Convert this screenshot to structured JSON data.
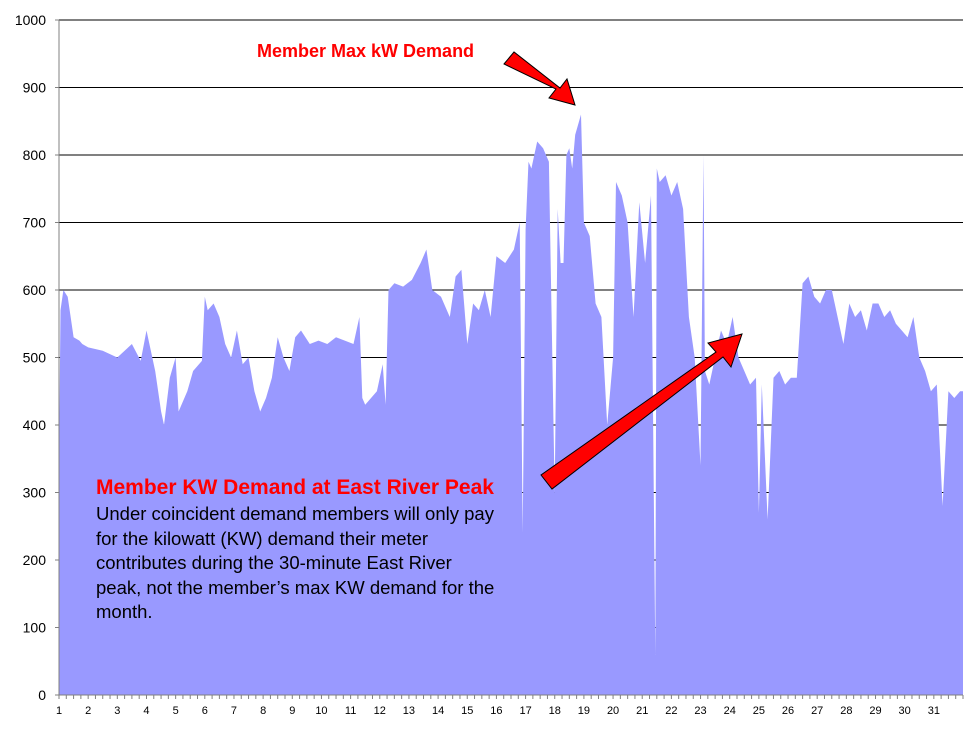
{
  "chart_data": {
    "type": "area",
    "title": "",
    "xlabel": "",
    "ylabel": "",
    "ylim": [
      0,
      1000
    ],
    "yticks": [
      0,
      100,
      200,
      300,
      400,
      500,
      600,
      700,
      800,
      900,
      1000
    ],
    "xlim": [
      1,
      32
    ],
    "xticks": [
      "1",
      "2",
      "3",
      "4",
      "5",
      "6",
      "7",
      "8",
      "9",
      "10",
      "11",
      "12",
      "13",
      "14",
      "15",
      "16",
      "17",
      "18",
      "19",
      "20",
      "21",
      "22",
      "23",
      "24",
      "25",
      "26",
      "27",
      "28",
      "29",
      "30",
      "31"
    ],
    "grid": true,
    "legend": "none",
    "fill_color": "#9999ff",
    "series": [
      {
        "day": [
          1.0,
          1.05,
          1.15,
          1.3,
          1.5,
          1.7,
          1.8,
          2.0,
          2.5,
          3.0,
          3.5,
          3.8,
          4.0,
          4.3,
          4.5,
          4.6,
          4.8,
          5.0,
          5.1,
          5.4,
          5.6,
          5.9,
          6.0,
          6.1,
          6.3,
          6.5,
          6.7,
          6.9,
          7.1,
          7.3,
          7.5,
          7.7,
          7.9,
          8.1,
          8.3,
          8.5,
          8.7,
          8.9,
          9.1,
          9.3,
          9.6,
          9.9,
          10.2,
          10.5,
          10.8,
          11.1,
          11.3,
          11.4,
          11.5,
          11.9,
          12.1,
          12.2,
          12.3,
          12.5,
          12.8,
          13.1,
          13.4,
          13.6,
          13.8,
          14.1,
          14.4,
          14.6,
          14.8,
          15.0,
          15.2,
          15.4,
          15.6,
          15.8,
          16.0,
          16.3,
          16.6,
          16.8,
          16.9,
          17.0,
          17.1,
          17.2,
          17.4,
          17.6,
          17.8,
          18.0,
          18.1,
          18.2,
          18.3,
          18.4,
          18.5,
          18.6,
          18.7,
          18.9,
          19.0,
          19.2,
          19.4,
          19.6,
          19.8,
          20.0,
          20.1,
          20.3,
          20.5,
          20.7,
          20.9,
          21.1,
          21.3,
          21.45,
          21.5,
          21.6,
          21.8,
          22.0,
          22.2,
          22.4,
          22.6,
          22.8,
          23.0,
          23.1,
          23.15,
          23.3,
          23.5,
          23.7,
          23.9,
          24.1,
          24.3,
          24.5,
          24.7,
          24.9,
          25.0,
          25.1,
          25.3,
          25.5,
          25.7,
          25.9,
          26.1,
          26.3,
          26.5,
          26.7,
          26.9,
          27.1,
          27.3,
          27.5,
          27.7,
          27.9,
          28.1,
          28.3,
          28.5,
          28.7,
          28.9,
          29.1,
          29.3,
          29.5,
          29.7,
          29.9,
          30.1,
          30.3,
          30.5,
          30.7,
          30.9,
          31.1,
          31.3,
          31.5,
          31.7,
          31.9,
          32.0
        ],
        "kw": [
          340,
          570,
          600,
          590,
          530,
          525,
          520,
          515,
          510,
          500,
          520,
          495,
          540,
          480,
          420,
          400,
          470,
          500,
          420,
          450,
          480,
          495,
          590,
          570,
          580,
          560,
          520,
          500,
          540,
          490,
          500,
          450,
          420,
          440,
          470,
          530,
          500,
          480,
          530,
          540,
          520,
          525,
          520,
          530,
          525,
          520,
          560,
          440,
          430,
          450,
          490,
          430,
          600,
          610,
          605,
          615,
          640,
          660,
          600,
          590,
          560,
          620,
          630,
          520,
          580,
          570,
          600,
          560,
          650,
          640,
          660,
          700,
          240,
          690,
          790,
          780,
          820,
          810,
          790,
          300,
          720,
          640,
          640,
          800,
          810,
          780,
          830,
          860,
          700,
          680,
          580,
          560,
          400,
          500,
          760,
          740,
          700,
          560,
          730,
          640,
          740,
          60,
          780,
          760,
          770,
          740,
          760,
          720,
          560,
          500,
          340,
          800,
          480,
          460,
          500,
          540,
          520,
          560,
          500,
          480,
          460,
          470,
          270,
          460,
          260,
          470,
          480,
          460,
          470,
          470,
          610,
          620,
          590,
          580,
          600,
          600,
          560,
          520,
          580,
          560,
          570,
          540,
          580,
          580,
          560,
          570,
          550,
          540,
          530,
          560,
          500,
          480,
          450,
          460,
          280,
          450,
          440,
          450,
          450,
          455
        ]
      }
    ],
    "annotations": [
      "Member Max kW Demand",
      "Member KW Demand at East River Peak"
    ]
  },
  "note": {
    "title": "Member KW Demand at East River Peak",
    "lines": [
      "Under coincident demand members will only pay",
      "for the kilowatt (KW) demand their meter",
      "contributes during the 30-minute East River",
      "peak, not the member’s max KW demand for the",
      "month."
    ]
  },
  "annotation_top": "Member Max kW Demand",
  "arrow_color": "#ff0000"
}
